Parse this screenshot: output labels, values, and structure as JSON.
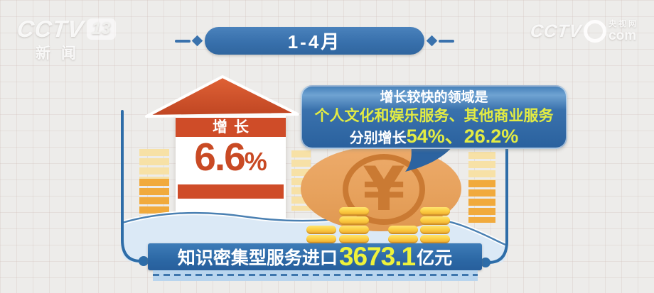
{
  "watermarks": {
    "left": {
      "brand": "CCTV",
      "channel": "13",
      "label": "新闻"
    },
    "right": {
      "brand": "CCTV",
      "site": "央视网",
      "domain": "com"
    }
  },
  "period": {
    "label": "1-4月"
  },
  "growth": {
    "label": "增长",
    "value": "6.6",
    "unit": "%"
  },
  "callout": {
    "line1": "增长较快的领域是",
    "line2": "个人文化和娱乐服务、其他商业服务",
    "line3_prefix": "分别增长",
    "line3_values": "54%、26.2%"
  },
  "coin": {
    "symbol": "¥"
  },
  "total": {
    "prefix": "知识密集型服务进口",
    "value": "3673.1",
    "unit": "亿元"
  },
  "colors": {
    "accent_blue": "#3a72ad",
    "accent_red": "#cf4c28",
    "gold": "#fbce42",
    "highlight_yellow": "#e9ef3d",
    "water": "#dbe9f6"
  },
  "chart_data": {
    "type": "infographic",
    "title": "1-4月 知识密集型服务进口情况",
    "period": "1-4月",
    "metrics": [
      {
        "label": "知识密集型服务进口额",
        "value": 3673.1,
        "unit": "亿元"
      },
      {
        "label": "知识密集型服务进口增长",
        "value": 6.6,
        "unit": "%"
      },
      {
        "label": "个人文化和娱乐服务增长",
        "value": 54,
        "unit": "%"
      },
      {
        "label": "其他商业服务增长",
        "value": 26.2,
        "unit": "%"
      }
    ],
    "note": "增长较快的领域是个人文化和娱乐服务、其他商业服务"
  }
}
